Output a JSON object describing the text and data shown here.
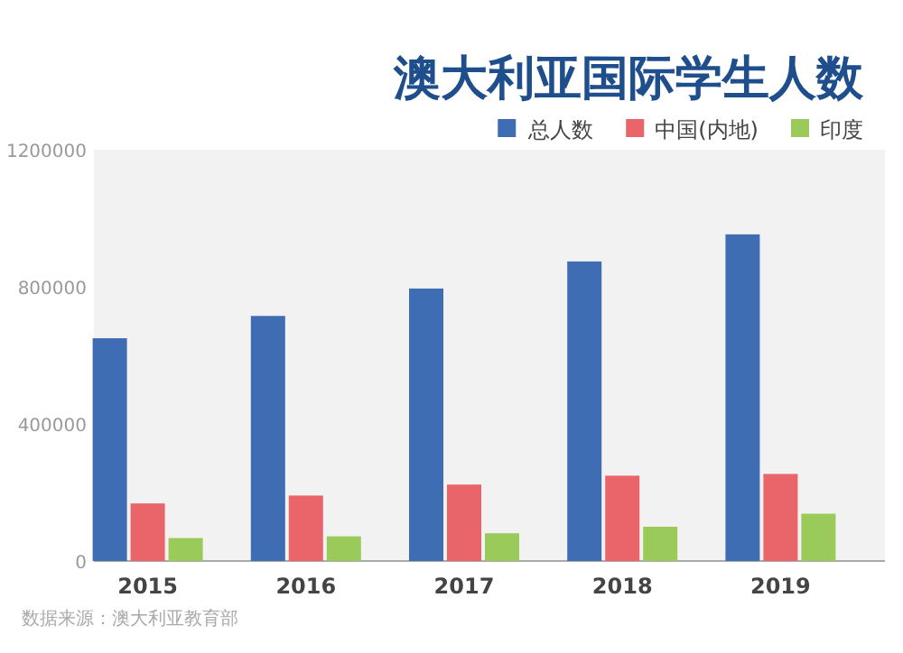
{
  "chart_data": {
    "type": "bar",
    "title": "澳大利亚国际学生人数",
    "categories": [
      "2015",
      "2016",
      "2017",
      "2018",
      "2019"
    ],
    "series": [
      {
        "name": "总人数",
        "color": "#3f6db3",
        "values": [
          650000,
          715000,
          795000,
          874000,
          953000
        ]
      },
      {
        "name": "中国(内地)",
        "color": "#e9656a",
        "values": [
          168000,
          191000,
          223000,
          249000,
          254000
        ]
      },
      {
        "name": "印度",
        "color": "#9acb5a",
        "values": [
          67000,
          72000,
          81000,
          100000,
          138000
        ]
      }
    ],
    "ylim": [
      0,
      1200000
    ],
    "yticks": [
      0,
      400000,
      800000,
      1200000
    ],
    "legend": "top right",
    "annotations": [
      "数据来源：澳大利亚教育部"
    ]
  }
}
